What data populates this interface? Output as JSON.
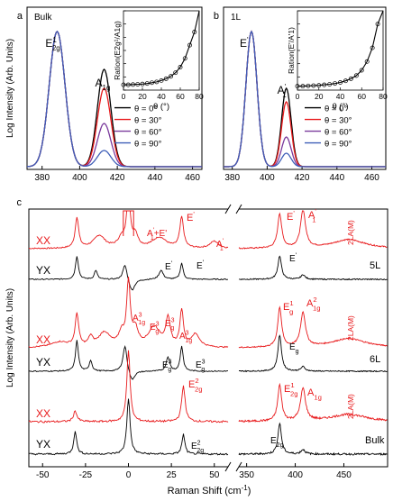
{
  "colors": {
    "black": "#000000",
    "red": "#e8191b",
    "purple": "#6a2d8f",
    "blue": "#3f5fb8",
    "theta0": "#000000",
    "theta30": "#e8191b",
    "theta60": "#7a3a9c",
    "theta90": "#3f5fb8"
  },
  "chart_data": [
    {
      "panel": "a",
      "type": "line",
      "panel_label": "a",
      "sample_label": "Bulk",
      "ylabel": "Log Intensity (Arb. Units)",
      "xlim": [
        372,
        465
      ],
      "xticks": [
        380,
        400,
        420,
        440,
        460
      ],
      "peaks": [
        {
          "mode": "E2g1",
          "label_base": "E",
          "label_sub": "2g",
          "label_sup": "1",
          "x": 388,
          "height": 1.0
        },
        {
          "mode": "A1g",
          "label_base": "A",
          "label_sub": "1g",
          "label_sup": "",
          "x": 413,
          "relative_heights": [
            0.72,
            0.58,
            0.32,
            0.12
          ]
        }
      ],
      "legend": {
        "placement": "lower-right",
        "entries": [
          "θ = 0°",
          "θ = 30°",
          "θ = 60°",
          "θ = 90°"
        ]
      },
      "inset": {
        "type": "scatter",
        "ylabel": "Ration(E2g¹/A1g)",
        "xlabel": "θ (°)",
        "xticks": [
          0,
          20,
          40,
          60,
          80
        ],
        "ylim": [
          0,
          30
        ],
        "x": [
          0,
          5,
          10,
          15,
          20,
          25,
          30,
          35,
          40,
          45,
          50,
          55,
          60,
          65,
          70,
          75
        ],
        "y": [
          2.0,
          2.0,
          2.1,
          2.2,
          2.3,
          2.5,
          2.8,
          3.1,
          3.6,
          4.3,
          5.2,
          6.6,
          8.7,
          12.0,
          17.0,
          22.0
        ]
      }
    },
    {
      "panel": "b",
      "type": "line",
      "panel_label": "b",
      "sample_label": "1L",
      "xlim": [
        375,
        468
      ],
      "xticks": [
        380,
        400,
        420,
        440,
        460
      ],
      "peaks": [
        {
          "mode": "E'",
          "label_base": "E",
          "label_sub": "",
          "label_sup": "'",
          "x": 391,
          "height": 1.0
        },
        {
          "mode": "A1'",
          "label_base": "A",
          "label_sub": "1",
          "label_sup": "'",
          "x": 411,
          "relative_heights": [
            0.58,
            0.48,
            0.22,
            0.1
          ]
        }
      ],
      "legend": {
        "placement": "lower-right",
        "entries": [
          "θ = 0°",
          "θ = 30°",
          "θ = 60°",
          "θ = 90°"
        ]
      },
      "inset": {
        "type": "scatter",
        "ylabel": "Ration(E'/A'1)",
        "xlabel": "θ (°)",
        "xticks": [
          0,
          20,
          40,
          60,
          80
        ],
        "ylim": [
          0,
          30
        ],
        "x": [
          0,
          5,
          10,
          15,
          20,
          25,
          30,
          35,
          40,
          45,
          50,
          55,
          60,
          65,
          70,
          75
        ],
        "y": [
          1.5,
          1.5,
          1.6,
          1.7,
          1.8,
          2.0,
          2.2,
          2.5,
          2.9,
          3.5,
          4.3,
          5.5,
          7.5,
          10.8,
          16.0,
          25.0
        ]
      }
    },
    {
      "panel": "c",
      "type": "line",
      "panel_label": "c",
      "ylabel": "Log Intensity (Arb. Units)",
      "xlabel": "Raman Shift (cm-1)",
      "xlabel_text": "Raman Shift (cm",
      "xlabel_sup": "-1",
      "xlabel_tail": ")",
      "broken_axis": {
        "left": [
          -58,
          58
        ],
        "right": [
          342,
          495
        ]
      },
      "xticks_left": [
        -50,
        -25,
        0,
        25,
        50
      ],
      "xticks_right": [
        350,
        400,
        450
      ],
      "series": [
        {
          "name": "XX",
          "layer": "5L",
          "color": "red"
        },
        {
          "name": "YX",
          "layer": "5L",
          "color": "black"
        },
        {
          "name": "XX",
          "layer": "6L",
          "color": "red"
        },
        {
          "name": "YX",
          "layer": "6L",
          "color": "black"
        },
        {
          "name": "XX",
          "layer": "Bulk",
          "color": "red"
        },
        {
          "name": "YX",
          "layer": "Bulk",
          "color": "black"
        }
      ],
      "layer_labels": [
        "5L",
        "6L",
        "Bulk"
      ],
      "mode_labels": [
        {
          "id": "A1E-5L",
          "base": "A",
          "sub": "1",
          "sup": "'",
          "tail": "+E'",
          "color": "red"
        },
        {
          "id": "E-5L-red",
          "base": "E",
          "sub": "",
          "sup": "'",
          "tail": "",
          "color": "red"
        },
        {
          "id": "A1-5L-low",
          "base": "A",
          "sub": "1",
          "sup": "'",
          "tail": "",
          "color": "red"
        },
        {
          "id": "E-5L-red-hi",
          "base": "E",
          "sub": "",
          "sup": "'",
          "tail": "",
          "color": "red"
        },
        {
          "id": "A1-5L-hi",
          "base": "A",
          "sub": "1",
          "sup": "'",
          "tail": "",
          "color": "red"
        },
        {
          "id": "E-5L-blk-lo",
          "base": "E",
          "sub": "",
          "sup": "'",
          "tail": "",
          "color": "black"
        },
        {
          "id": "E-5L-blk-mid",
          "base": "E",
          "sub": "",
          "sup": "'",
          "tail": "",
          "color": "black"
        },
        {
          "id": "E-5L-blk-hi",
          "base": "E",
          "sub": "",
          "sup": "'",
          "tail": "",
          "color": "black"
        },
        {
          "id": "A1g3-6L",
          "base": "A",
          "sub": "1g",
          "sup": "3",
          "tail": "",
          "color": "red"
        },
        {
          "id": "Eg3-6L-red",
          "base": "E",
          "sub": "g",
          "sup": "3",
          "tail": "",
          "color": "red"
        },
        {
          "id": "Eg3-6L-red2",
          "base": "E",
          "sub": "g",
          "sup": "3",
          "tail": "",
          "color": "red"
        },
        {
          "id": "A1g3-6L-r",
          "base": "A",
          "sub": "1g",
          "sup": "3",
          "tail": "",
          "color": "red"
        },
        {
          "id": "Eg1-6L",
          "base": "E",
          "sub": "g",
          "sup": "1",
          "tail": "",
          "color": "red"
        },
        {
          "id": "A1g2-6L",
          "base": "A",
          "sub": "1g",
          "sup": "2",
          "tail": "",
          "color": "red"
        },
        {
          "id": "Eg3-6L-blk",
          "base": "E",
          "sub": "g",
          "sup": "3",
          "tail": "",
          "color": "black"
        },
        {
          "id": "Eg3-6L-blk2",
          "base": "E",
          "sub": "g",
          "sup": "3",
          "tail": "",
          "color": "black"
        },
        {
          "id": "Eg-6L-blk",
          "base": "E",
          "sub": "g",
          "sup": "",
          "tail": "",
          "color": "black"
        },
        {
          "id": "E2g2-bulk",
          "base": "E",
          "sub": "2g",
          "sup": "2",
          "tail": "",
          "color": "red"
        },
        {
          "id": "E2g1-bulk",
          "base": "E",
          "sub": "2g",
          "sup": "1",
          "tail": "",
          "color": "red"
        },
        {
          "id": "A1g-bulk",
          "base": "A",
          "sub": "1g",
          "sup": "",
          "tail": "",
          "color": "red"
        },
        {
          "id": "E2g2-bulk-blk",
          "base": "E",
          "sub": "2g",
          "sup": "2",
          "tail": "",
          "color": "black"
        },
        {
          "id": "E2g-bulk-blk",
          "base": "E",
          "sub": "2g",
          "sup": "",
          "tail": "",
          "color": "black"
        }
      ],
      "vertical_labels": [
        "2LA(M)",
        "2LA(M)",
        "2LA(M)"
      ]
    }
  ]
}
